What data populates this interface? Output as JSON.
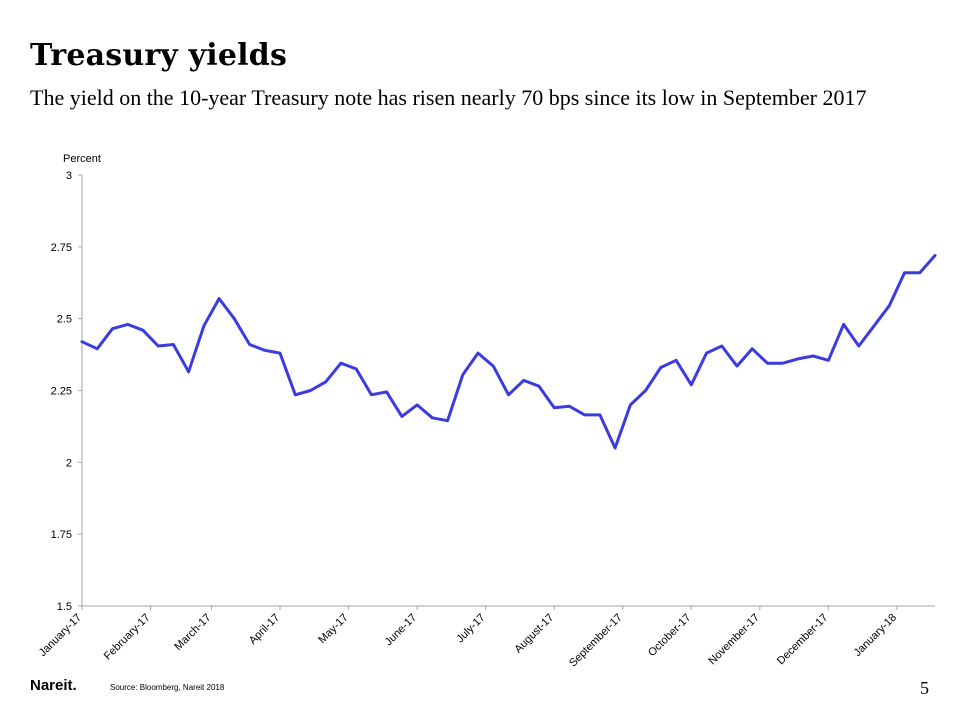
{
  "slide": {
    "title": "Treasury yields",
    "subtitle": "The yield on the 10-year Treasury note has risen nearly 70 bps since its low in September 2017",
    "source": "Source: Bloomberg, Nareit 2018",
    "logo_text": "Nareit.",
    "page_number": "5"
  },
  "colors": {
    "line": "#3b3be0",
    "axis": "#a6a6a6",
    "text": "#000000"
  },
  "chart_data": {
    "type": "line",
    "ylabel": "Percent",
    "ylim": [
      1.5,
      3
    ],
    "yticks": [
      "3",
      "2.75",
      "2.5",
      "2.25",
      "2",
      "1.75",
      "1.5"
    ],
    "grid": false,
    "x_tick_labels": [
      "January-17",
      "February-17",
      "March-17",
      "April-17",
      "May-17",
      "June-17",
      "July-17",
      "August-17",
      "September-17",
      "October-17",
      "November-17",
      "December-17",
      "January-18"
    ],
    "x_tick_index": [
      0,
      4.5,
      8.5,
      13,
      17.5,
      22,
      26.5,
      31,
      35.5,
      40,
      44.5,
      49,
      53.5
    ],
    "series": [
      {
        "values": [
          2.42,
          2.395,
          2.465,
          2.48,
          2.46,
          2.405,
          2.41,
          2.315,
          2.475,
          2.57,
          2.5,
          2.41,
          2.39,
          2.38,
          2.235,
          2.25,
          2.28,
          2.345,
          2.325,
          2.235,
          2.245,
          2.16,
          2.2,
          2.155,
          2.145,
          2.305,
          2.38,
          2.335,
          2.235,
          2.285,
          2.265,
          2.19,
          2.195,
          2.165,
          2.165,
          2.05,
          2.2,
          2.25,
          2.33,
          2.355,
          2.27,
          2.38,
          2.405,
          2.335,
          2.395,
          2.345,
          2.345,
          2.36,
          2.37,
          2.355,
          2.48,
          2.405,
          2.475,
          2.545,
          2.66,
          2.66,
          2.72
        ]
      }
    ]
  }
}
